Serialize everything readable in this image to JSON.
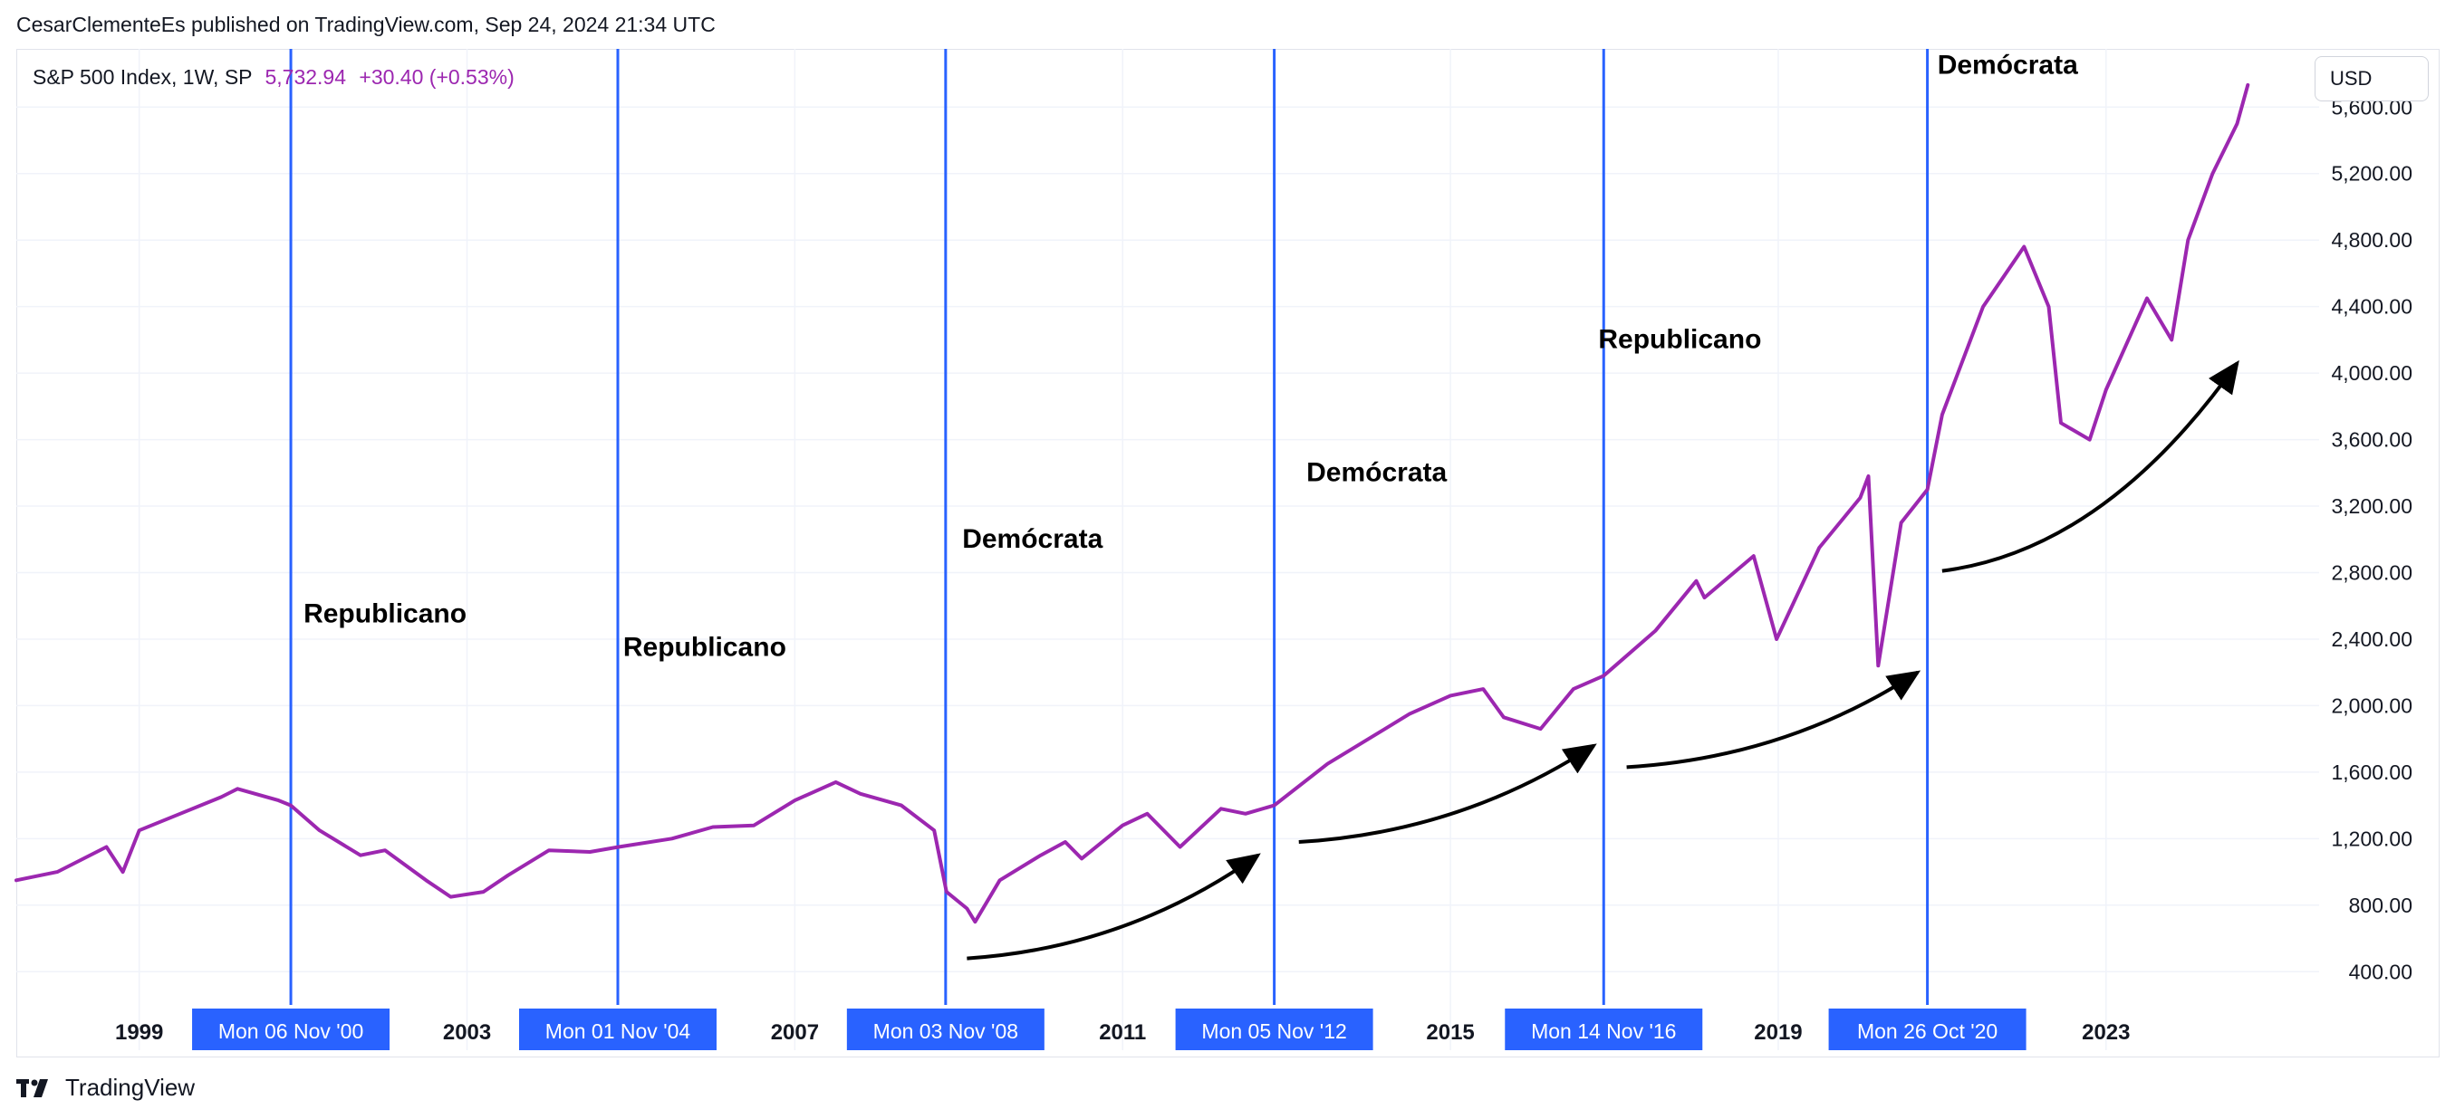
{
  "header": {
    "attribution": "CesarClementeEs published on TradingView.com, Sep 24, 2024 21:34 UTC"
  },
  "legend": {
    "symbol": "S&P 500 Index, 1W, SP",
    "price": "5,732.94",
    "change": "+30.40 (+0.53%)"
  },
  "currency_button": {
    "label": "USD"
  },
  "footer": {
    "brand": "TradingView"
  },
  "colors": {
    "series": "#9c27b0",
    "election_line": "#2962ff",
    "arrow": "#000000",
    "grid": "#f0f3fa",
    "axis_text": "#131722"
  },
  "chart_data": {
    "type": "line",
    "title": "S&P 500 Index, 1W, SP",
    "xlabel": "",
    "ylabel": "",
    "ylim": [
      200,
      5950
    ],
    "xlim": [
      1997.5,
      2025.6
    ],
    "y_ticks": [
      400,
      800,
      1200,
      1600,
      2000,
      2400,
      2800,
      3200,
      3600,
      4000,
      4400,
      4800,
      5200,
      5600
    ],
    "y_tick_labels": [
      "400.00",
      "800.00",
      "1,200.00",
      "1,600.00",
      "2,000.00",
      "2,400.00",
      "2,800.00",
      "3,200.00",
      "3,600.00",
      "4,000.00",
      "4,400.00",
      "4,800.00",
      "5,200.00",
      "5,600.00"
    ],
    "x_ticks": [
      1999,
      2003,
      2007,
      2011,
      2015,
      2019,
      2023
    ],
    "x_tick_labels": [
      "1999",
      "2003",
      "2007",
      "2011",
      "2015",
      "2019",
      "2023"
    ],
    "series": [
      {
        "name": "S&P 500 Index",
        "x": [
          1997.5,
          1998.0,
          1998.6,
          1998.8,
          1999.0,
          1999.5,
          2000.0,
          2000.2,
          2000.7,
          2000.85,
          2001.2,
          2001.7,
          2002.0,
          2002.5,
          2002.8,
          2003.2,
          2003.5,
          2004.0,
          2004.5,
          2004.85,
          2005.5,
          2006.0,
          2006.5,
          2007.0,
          2007.5,
          2007.8,
          2008.3,
          2008.7,
          2008.85,
          2009.1,
          2009.2,
          2009.5,
          2010.0,
          2010.3,
          2010.5,
          2011.0,
          2011.3,
          2011.7,
          2012.2,
          2012.5,
          2012.85,
          2013.5,
          2014.0,
          2014.5,
          2015.0,
          2015.4,
          2015.65,
          2016.1,
          2016.5,
          2016.87,
          2017.5,
          2018.0,
          2018.1,
          2018.7,
          2018.98,
          2019.5,
          2020.0,
          2020.1,
          2020.22,
          2020.5,
          2020.82,
          2021.0,
          2021.5,
          2022.0,
          2022.3,
          2022.45,
          2022.8,
          2023.0,
          2023.5,
          2023.8,
          2024.0,
          2024.3,
          2024.5,
          2024.6,
          2024.73
        ],
        "values": [
          950,
          1000,
          1150,
          1000,
          1250,
          1350,
          1450,
          1500,
          1430,
          1400,
          1250,
          1100,
          1130,
          950,
          850,
          880,
          980,
          1130,
          1120,
          1150,
          1200,
          1270,
          1280,
          1430,
          1540,
          1470,
          1400,
          1250,
          880,
          780,
          700,
          950,
          1100,
          1180,
          1080,
          1280,
          1350,
          1150,
          1380,
          1350,
          1400,
          1650,
          1800,
          1950,
          2060,
          2100,
          1930,
          1860,
          2100,
          2180,
          2450,
          2750,
          2650,
          2900,
          2400,
          2950,
          3250,
          3380,
          2240,
          3100,
          3300,
          3750,
          4400,
          4760,
          4400,
          3700,
          3600,
          3900,
          4450,
          4200,
          4800,
          5200,
          5400,
          5500,
          5733
        ]
      }
    ],
    "election_dates": [
      2000.85,
      2004.84,
      2008.84,
      2012.85,
      2016.87,
      2020.82
    ],
    "election_labels": [
      "Mon 06 Nov '00",
      "Mon 01 Nov '04",
      "Mon 03 Nov '08",
      "Mon 05 Nov '12",
      "Mon 14 Nov '16",
      "Mon 26 Oct '20"
    ],
    "annotations": [
      {
        "text": "Republicano",
        "x": 2002.0,
        "y": 2500
      },
      {
        "text": "Republicano",
        "x": 2005.9,
        "y": 2300
      },
      {
        "text": "Demócrata",
        "x": 2009.9,
        "y": 2950
      },
      {
        "text": "Demócrata",
        "x": 2014.1,
        "y": 3350
      },
      {
        "text": "Republicano",
        "x": 2017.8,
        "y": 4150
      },
      {
        "text": "Demócrata",
        "x": 2021.8,
        "y": 5800
      }
    ],
    "arrows": [
      {
        "from": [
          2009.1,
          480
        ],
        "to": [
          2012.65,
          1100
        ]
      },
      {
        "from": [
          2013.15,
          1180
        ],
        "to": [
          2016.75,
          1760
        ]
      },
      {
        "from": [
          2017.15,
          1630
        ],
        "to": [
          2020.7,
          2200
        ]
      },
      {
        "from": [
          2021.0,
          2810
        ],
        "to": [
          2024.6,
          4060
        ]
      }
    ]
  }
}
